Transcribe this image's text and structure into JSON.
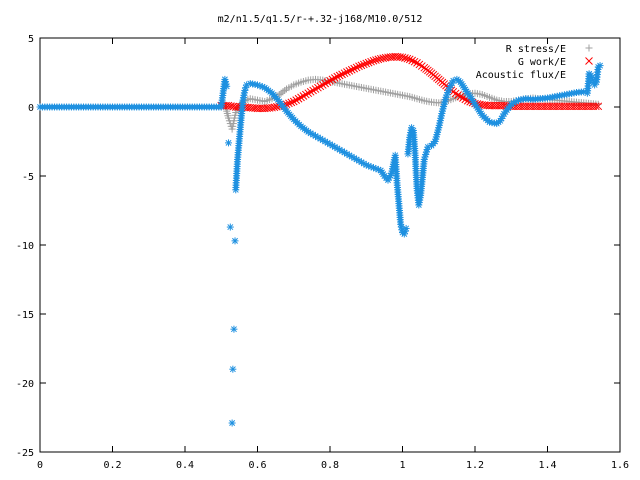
{
  "chart_data": {
    "type": "scatter",
    "title": "m2/n1.5/q1.5/r-+.32-j168/M10.0/512",
    "xlabel": "",
    "ylabel": "",
    "xlim": [
      0,
      1.6
    ],
    "ylim": [
      -25,
      5
    ],
    "x_ticks": [
      "0",
      "0.2",
      "0.4",
      "0.6",
      "0.8",
      "1",
      "1.2",
      "1.4",
      "1.6"
    ],
    "y_ticks": [
      "5",
      "0",
      "-5",
      "-10",
      "-15",
      "-20",
      "-25"
    ],
    "grid": false,
    "legend_position": "top-right",
    "series": [
      {
        "name": "R stress/E",
        "color": "#a0a0a0",
        "marker": "plus",
        "points": [
          [
            0.5,
            0.0
          ],
          [
            0.51,
            0.2
          ],
          [
            0.515,
            -0.3
          ],
          [
            0.52,
            -0.8
          ],
          [
            0.525,
            -1.2
          ],
          [
            0.53,
            -1.6
          ],
          [
            0.535,
            -1.0
          ],
          [
            0.54,
            -0.4
          ],
          [
            0.55,
            0.1
          ],
          [
            0.56,
            0.4
          ],
          [
            0.58,
            0.6
          ],
          [
            0.6,
            0.5
          ],
          [
            0.62,
            0.4
          ],
          [
            0.64,
            0.6
          ],
          [
            0.66,
            0.9
          ],
          [
            0.68,
            1.3
          ],
          [
            0.7,
            1.6
          ],
          [
            0.72,
            1.8
          ],
          [
            0.74,
            1.95
          ],
          [
            0.76,
            2.0
          ],
          [
            0.78,
            1.95
          ],
          [
            0.8,
            1.85
          ],
          [
            0.82,
            1.75
          ],
          [
            0.84,
            1.65
          ],
          [
            0.86,
            1.55
          ],
          [
            0.88,
            1.45
          ],
          [
            0.9,
            1.35
          ],
          [
            0.92,
            1.25
          ],
          [
            0.94,
            1.15
          ],
          [
            0.96,
            1.05
          ],
          [
            0.98,
            0.95
          ],
          [
            1.0,
            0.85
          ],
          [
            1.02,
            0.75
          ],
          [
            1.04,
            0.6
          ],
          [
            1.06,
            0.45
          ],
          [
            1.08,
            0.35
          ],
          [
            1.1,
            0.3
          ],
          [
            1.12,
            0.4
          ],
          [
            1.14,
            0.6
          ],
          [
            1.16,
            0.8
          ],
          [
            1.18,
            0.95
          ],
          [
            1.2,
            1.0
          ],
          [
            1.22,
            0.9
          ],
          [
            1.24,
            0.7
          ],
          [
            1.26,
            0.5
          ],
          [
            1.28,
            0.4
          ],
          [
            1.3,
            0.4
          ],
          [
            1.32,
            0.5
          ],
          [
            1.34,
            0.6
          ],
          [
            1.36,
            0.65
          ],
          [
            1.38,
            0.6
          ],
          [
            1.4,
            0.55
          ],
          [
            1.42,
            0.5
          ],
          [
            1.44,
            0.45
          ],
          [
            1.46,
            0.4
          ],
          [
            1.48,
            0.35
          ],
          [
            1.5,
            0.3
          ],
          [
            1.52,
            0.25
          ],
          [
            1.54,
            0.2
          ]
        ]
      },
      {
        "name": "G work/E",
        "color": "#ff0000",
        "marker": "cross",
        "points": [
          [
            0.5,
            0.1
          ],
          [
            0.52,
            0.1
          ],
          [
            0.54,
            0.0
          ],
          [
            0.56,
            0.0
          ],
          [
            0.58,
            -0.05
          ],
          [
            0.6,
            -0.1
          ],
          [
            0.62,
            -0.1
          ],
          [
            0.64,
            -0.05
          ],
          [
            0.66,
            0.05
          ],
          [
            0.68,
            0.2
          ],
          [
            0.7,
            0.4
          ],
          [
            0.72,
            0.7
          ],
          [
            0.74,
            1.0
          ],
          [
            0.76,
            1.3
          ],
          [
            0.78,
            1.6
          ],
          [
            0.8,
            1.9
          ],
          [
            0.82,
            2.2
          ],
          [
            0.84,
            2.45
          ],
          [
            0.86,
            2.7
          ],
          [
            0.88,
            2.95
          ],
          [
            0.9,
            3.15
          ],
          [
            0.92,
            3.35
          ],
          [
            0.94,
            3.5
          ],
          [
            0.96,
            3.6
          ],
          [
            0.98,
            3.65
          ],
          [
            1.0,
            3.6
          ],
          [
            1.02,
            3.45
          ],
          [
            1.04,
            3.2
          ],
          [
            1.06,
            2.85
          ],
          [
            1.08,
            2.45
          ],
          [
            1.1,
            2.0
          ],
          [
            1.12,
            1.55
          ],
          [
            1.14,
            1.1
          ],
          [
            1.16,
            0.75
          ],
          [
            1.18,
            0.45
          ],
          [
            1.2,
            0.25
          ],
          [
            1.22,
            0.15
          ],
          [
            1.24,
            0.1
          ],
          [
            1.26,
            0.1
          ],
          [
            1.28,
            0.1
          ],
          [
            1.3,
            0.05
          ],
          [
            1.32,
            0.05
          ],
          [
            1.34,
            0.05
          ],
          [
            1.36,
            0.05
          ],
          [
            1.38,
            0.05
          ],
          [
            1.4,
            0.05
          ],
          [
            1.42,
            0.05
          ],
          [
            1.44,
            0.05
          ],
          [
            1.46,
            0.05
          ],
          [
            1.48,
            0.05
          ],
          [
            1.5,
            0.05
          ],
          [
            1.52,
            0.05
          ],
          [
            1.54,
            0.05
          ]
        ]
      },
      {
        "name": "Acoustic flux/E",
        "color": "#1e90e0",
        "marker": "star",
        "points": [
          [
            0.0,
            0.0
          ],
          [
            0.02,
            0.0
          ],
          [
            0.04,
            0.0
          ],
          [
            0.06,
            0.0
          ],
          [
            0.08,
            0.0
          ],
          [
            0.1,
            0.0
          ],
          [
            0.12,
            0.0
          ],
          [
            0.14,
            0.0
          ],
          [
            0.16,
            0.0
          ],
          [
            0.18,
            0.0
          ],
          [
            0.2,
            0.0
          ],
          [
            0.22,
            0.0
          ],
          [
            0.24,
            0.0
          ],
          [
            0.26,
            0.0
          ],
          [
            0.28,
            0.0
          ],
          [
            0.3,
            0.0
          ],
          [
            0.32,
            0.0
          ],
          [
            0.34,
            0.0
          ],
          [
            0.36,
            0.0
          ],
          [
            0.38,
            0.0
          ],
          [
            0.4,
            0.0
          ],
          [
            0.42,
            0.0
          ],
          [
            0.44,
            0.0
          ],
          [
            0.46,
            0.0
          ],
          [
            0.48,
            0.0
          ],
          [
            0.5,
            0.0
          ],
          [
            0.51,
            2.0
          ],
          [
            0.515,
            1.5
          ],
          [
            0.52,
            -2.6
          ],
          [
            0.525,
            -8.7
          ],
          [
            0.53,
            -22.9
          ],
          [
            0.532,
            -19.0
          ],
          [
            0.535,
            -16.1
          ],
          [
            0.538,
            -9.7
          ],
          [
            0.54,
            -6.0
          ],
          [
            0.545,
            -3.8
          ],
          [
            0.55,
            -2.3
          ],
          [
            0.555,
            -0.8
          ],
          [
            0.56,
            0.5
          ],
          [
            0.565,
            1.2
          ],
          [
            0.57,
            1.6
          ],
          [
            0.58,
            1.7
          ],
          [
            0.6,
            1.6
          ],
          [
            0.62,
            1.4
          ],
          [
            0.64,
            1.0
          ],
          [
            0.66,
            0.4
          ],
          [
            0.68,
            -0.3
          ],
          [
            0.7,
            -0.9
          ],
          [
            0.72,
            -1.4
          ],
          [
            0.74,
            -1.8
          ],
          [
            0.76,
            -2.1
          ],
          [
            0.78,
            -2.4
          ],
          [
            0.8,
            -2.7
          ],
          [
            0.82,
            -3.0
          ],
          [
            0.84,
            -3.3
          ],
          [
            0.86,
            -3.6
          ],
          [
            0.88,
            -3.9
          ],
          [
            0.9,
            -4.2
          ],
          [
            0.92,
            -4.4
          ],
          [
            0.94,
            -4.6
          ],
          [
            0.95,
            -5.0
          ],
          [
            0.96,
            -5.3
          ],
          [
            0.97,
            -4.8
          ],
          [
            0.98,
            -3.5
          ],
          [
            0.985,
            -5.5
          ],
          [
            0.99,
            -7.0
          ],
          [
            0.995,
            -8.5
          ],
          [
            1.0,
            -9.1
          ],
          [
            1.005,
            -9.2
          ],
          [
            1.01,
            -8.8
          ],
          [
            1.015,
            -3.4
          ],
          [
            1.02,
            -2.2
          ],
          [
            1.025,
            -1.5
          ],
          [
            1.03,
            -1.7
          ],
          [
            1.035,
            -3.5
          ],
          [
            1.04,
            -5.9
          ],
          [
            1.045,
            -7.1
          ],
          [
            1.05,
            -6.4
          ],
          [
            1.055,
            -5.1
          ],
          [
            1.06,
            -3.8
          ],
          [
            1.07,
            -2.9
          ],
          [
            1.08,
            -2.8
          ],
          [
            1.09,
            -2.5
          ],
          [
            1.1,
            -1.5
          ],
          [
            1.11,
            -0.3
          ],
          [
            1.12,
            0.7
          ],
          [
            1.13,
            1.4
          ],
          [
            1.14,
            1.9
          ],
          [
            1.15,
            2.0
          ],
          [
            1.16,
            1.8
          ],
          [
            1.17,
            1.4
          ],
          [
            1.18,
            1.0
          ],
          [
            1.2,
            0.2
          ],
          [
            1.22,
            -0.6
          ],
          [
            1.24,
            -1.1
          ],
          [
            1.26,
            -1.2
          ],
          [
            1.27,
            -1.0
          ],
          [
            1.28,
            -0.5
          ],
          [
            1.3,
            0.2
          ],
          [
            1.32,
            0.5
          ],
          [
            1.34,
            0.6
          ],
          [
            1.36,
            0.55
          ],
          [
            1.38,
            0.6
          ],
          [
            1.4,
            0.65
          ],
          [
            1.42,
            0.75
          ],
          [
            1.44,
            0.85
          ],
          [
            1.46,
            0.95
          ],
          [
            1.48,
            1.05
          ],
          [
            1.5,
            1.1
          ],
          [
            1.51,
            1.0
          ],
          [
            1.515,
            2.4
          ],
          [
            1.52,
            2.3
          ],
          [
            1.53,
            1.6
          ],
          [
            1.535,
            1.8
          ],
          [
            1.54,
            2.9
          ],
          [
            1.545,
            3.0
          ]
        ]
      }
    ]
  }
}
